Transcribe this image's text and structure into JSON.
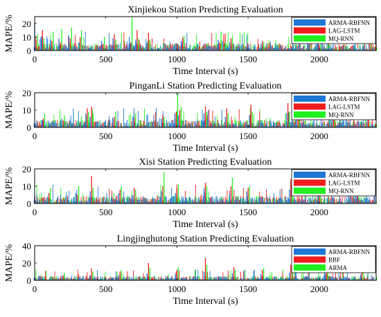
{
  "figure": {
    "background": "#ffffff"
  },
  "chart_data": [
    {
      "type": "bar",
      "title": "Xinjiekou Station Predicting Evaluation",
      "xlabel": "Time Interval (s)",
      "ylabel": "MAPE/%",
      "xlim": [
        0,
        2400
      ],
      "ylim": [
        0,
        25
      ],
      "xticks": [
        "0",
        "500",
        "1000",
        "1500",
        "2000"
      ],
      "yticks": [
        "0",
        "10",
        "20"
      ],
      "legend_position": "top-right",
      "series": [
        {
          "name": "ARMA-RBFNN",
          "color": "#1f77d4"
        },
        {
          "name": "LAG-LSTM",
          "color": "#ee1c1c"
        },
        {
          "name": "MQ-RNN",
          "color": "#22ee22"
        }
      ],
      "peaks": [
        {
          "x": 10,
          "values": [
            19,
            8,
            12
          ]
        },
        {
          "x": 55,
          "values": [
            10,
            15,
            9
          ]
        },
        {
          "x": 120,
          "values": [
            8,
            7,
            14
          ]
        },
        {
          "x": 180,
          "values": [
            9,
            6,
            16
          ]
        },
        {
          "x": 250,
          "values": [
            11,
            9,
            17
          ]
        },
        {
          "x": 320,
          "values": [
            6,
            10,
            15
          ]
        },
        {
          "x": 480,
          "values": [
            7,
            5,
            10
          ]
        },
        {
          "x": 560,
          "values": [
            9,
            12,
            8
          ]
        },
        {
          "x": 675,
          "values": [
            10,
            6,
            25
          ]
        },
        {
          "x": 720,
          "values": [
            8,
            15,
            9
          ]
        },
        {
          "x": 800,
          "values": [
            6,
            13,
            8
          ]
        },
        {
          "x": 1040,
          "values": [
            7,
            9,
            11
          ]
        },
        {
          "x": 1300,
          "values": [
            8,
            6,
            14
          ]
        },
        {
          "x": 1330,
          "values": [
            7,
            12,
            6
          ]
        },
        {
          "x": 1380,
          "values": [
            6,
            9,
            10
          ]
        },
        {
          "x": 1600,
          "values": [
            5,
            7,
            6
          ]
        },
        {
          "x": 2000,
          "values": [
            6,
            4,
            5
          ]
        }
      ]
    },
    {
      "type": "bar",
      "title": "PinganLi Station Predicting Evaluation",
      "xlabel": "Time Interval (s)",
      "ylabel": "MAPE/%",
      "xlim": [
        0,
        2400
      ],
      "ylim": [
        0,
        20
      ],
      "xticks": [
        "0",
        "500",
        "1000",
        "1500",
        "2000"
      ],
      "yticks": [
        "0",
        "10",
        "20"
      ],
      "legend_position": "top-right",
      "series": [
        {
          "name": "ARMA-RBFNN",
          "color": "#1f77d4"
        },
        {
          "name": "LAG-LSTM",
          "color": "#ee1c1c"
        },
        {
          "name": "MQ-RNN",
          "color": "#22ee22"
        }
      ],
      "peaks": [
        {
          "x": 60,
          "values": [
            4,
            5,
            8
          ]
        },
        {
          "x": 200,
          "values": [
            5,
            4,
            7
          ]
        },
        {
          "x": 370,
          "values": [
            8,
            11,
            9
          ]
        },
        {
          "x": 400,
          "values": [
            6,
            12,
            8
          ]
        },
        {
          "x": 560,
          "values": [
            5,
            6,
            9
          ]
        },
        {
          "x": 700,
          "values": [
            6,
            5,
            8
          ]
        },
        {
          "x": 900,
          "values": [
            5,
            7,
            6
          ]
        },
        {
          "x": 995,
          "values": [
            8,
            9,
            20
          ]
        },
        {
          "x": 1020,
          "values": [
            7,
            10,
            12
          ]
        },
        {
          "x": 1200,
          "values": [
            8,
            12,
            9
          ]
        },
        {
          "x": 1350,
          "values": [
            6,
            11,
            8
          ]
        },
        {
          "x": 1520,
          "values": [
            7,
            13,
            9
          ]
        },
        {
          "x": 1780,
          "values": [
            8,
            14,
            9
          ]
        },
        {
          "x": 1850,
          "values": [
            7,
            12,
            8
          ]
        },
        {
          "x": 2100,
          "values": [
            5,
            6,
            8
          ]
        }
      ]
    },
    {
      "type": "bar",
      "title": "Xisi Station Predicting Evaluation",
      "xlabel": "Time Interval (s)",
      "ylabel": "MAPE/%",
      "xlim": [
        0,
        2400
      ],
      "ylim": [
        0,
        20
      ],
      "xticks": [
        "0",
        "500",
        "1000",
        "1500",
        "2000"
      ],
      "yticks": [
        "0",
        "10",
        "20"
      ],
      "legend_position": "top-right",
      "series": [
        {
          "name": "ARMA-RBFNN",
          "color": "#1f77d4"
        },
        {
          "name": "LAG-LSTM",
          "color": "#ee1c1c"
        },
        {
          "name": "MQ-RNN",
          "color": "#22ee22"
        }
      ],
      "peaks": [
        {
          "x": 100,
          "values": [
            4,
            6,
            9
          ]
        },
        {
          "x": 300,
          "values": [
            6,
            5,
            10
          ]
        },
        {
          "x": 400,
          "values": [
            7,
            16,
            9
          ]
        },
        {
          "x": 600,
          "values": [
            6,
            8,
            10
          ]
        },
        {
          "x": 700,
          "values": [
            5,
            9,
            8
          ]
        },
        {
          "x": 900,
          "values": [
            7,
            10,
            18
          ]
        },
        {
          "x": 1000,
          "values": [
            6,
            9,
            11
          ]
        },
        {
          "x": 1200,
          "values": [
            8,
            12,
            10
          ]
        },
        {
          "x": 1380,
          "values": [
            6,
            10,
            15
          ]
        },
        {
          "x": 1500,
          "values": [
            7,
            9,
            10
          ]
        },
        {
          "x": 1800,
          "values": [
            8,
            14,
            10
          ]
        },
        {
          "x": 2000,
          "values": [
            5,
            7,
            8
          ]
        }
      ]
    },
    {
      "type": "bar",
      "title": "Lingjinghutong Station Predicting Evaluation",
      "xlabel": "Time Interval (s)",
      "ylabel": "MAPE/%",
      "xlim": [
        0,
        2400
      ],
      "ylim": [
        0,
        40
      ],
      "xticks": [
        "0",
        "500",
        "1000",
        "1500",
        "2000"
      ],
      "yticks": [
        "0",
        "20",
        "40"
      ],
      "legend_position": "top-right",
      "series": [
        {
          "name": "ARMA-RBFNN",
          "color": "#1f77d4"
        },
        {
          "name": "RBF",
          "color": "#ee1c1c"
        },
        {
          "name": "ARMA",
          "color": "#22ee22"
        }
      ],
      "peaks": [
        {
          "x": 200,
          "values": [
            5,
            6,
            8
          ]
        },
        {
          "x": 400,
          "values": [
            6,
            14,
            10
          ]
        },
        {
          "x": 600,
          "values": [
            6,
            10,
            12
          ]
        },
        {
          "x": 800,
          "values": [
            8,
            20,
            15
          ]
        },
        {
          "x": 1000,
          "values": [
            7,
            12,
            15
          ]
        },
        {
          "x": 1200,
          "values": [
            10,
            26,
            18
          ]
        },
        {
          "x": 1400,
          "values": [
            8,
            15,
            12
          ]
        },
        {
          "x": 1600,
          "values": [
            7,
            12,
            14
          ]
        },
        {
          "x": 1800,
          "values": [
            9,
            18,
            22
          ]
        },
        {
          "x": 2050,
          "values": [
            8,
            12,
            10
          ]
        },
        {
          "x": 2300,
          "values": [
            7,
            10,
            9
          ]
        }
      ]
    }
  ]
}
